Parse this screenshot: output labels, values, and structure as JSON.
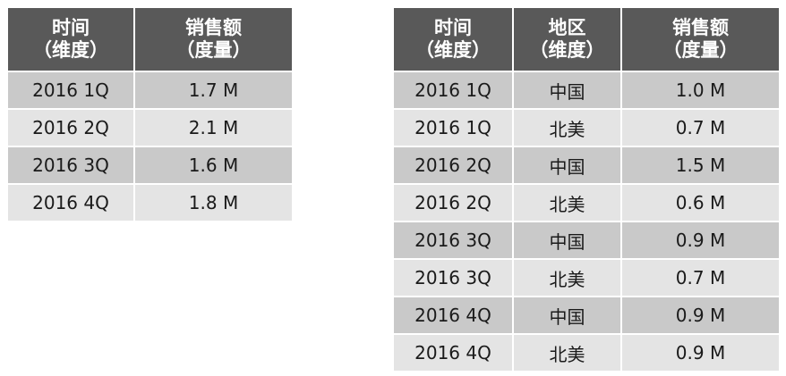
{
  "chart_data": [
    {
      "type": "table",
      "columns": [
        {
          "line1": "时间",
          "line2": "（维度）"
        },
        {
          "line1": "销售额",
          "line2": "（度量）"
        }
      ],
      "rows": [
        [
          "2016 1Q",
          "1.7 M"
        ],
        [
          "2016 2Q",
          "2.1 M"
        ],
        [
          "2016 3Q",
          "1.6 M"
        ],
        [
          "2016 4Q",
          "1.8 M"
        ]
      ]
    },
    {
      "type": "table",
      "columns": [
        {
          "line1": "时间",
          "line2": "（维度）"
        },
        {
          "line1": "地区",
          "line2": "（维度）"
        },
        {
          "line1": "销售额",
          "line2": "（度量）"
        }
      ],
      "rows": [
        [
          "2016 1Q",
          "中国",
          "1.0 M"
        ],
        [
          "2016 1Q",
          "北美",
          "0.7 M"
        ],
        [
          "2016 2Q",
          "中国",
          "1.5 M"
        ],
        [
          "2016 2Q",
          "北美",
          "0.6 M"
        ],
        [
          "2016 3Q",
          "中国",
          "0.9 M"
        ],
        [
          "2016 3Q",
          "北美",
          "0.7 M"
        ],
        [
          "2016 4Q",
          "中国",
          "0.9 M"
        ],
        [
          "2016 4Q",
          "北美",
          "0.9 M"
        ]
      ]
    }
  ],
  "colors": {
    "header_bg": "#595959",
    "header_text": "#ffffff",
    "row_dark": "#c9c9c9",
    "row_light": "#e4e4e4",
    "cell_text": "#1a1a1a"
  }
}
